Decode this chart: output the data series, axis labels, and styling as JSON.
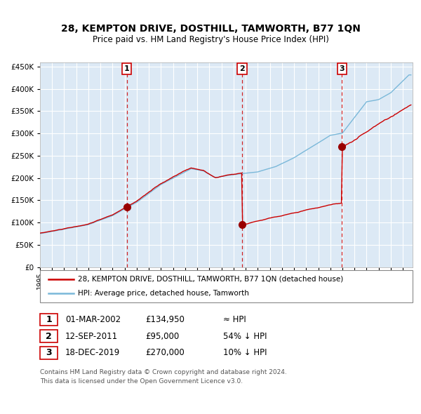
{
  "title": "28, KEMPTON DRIVE, DOSTHILL, TAMWORTH, B77 1QN",
  "subtitle": "Price paid vs. HM Land Registry's House Price Index (HPI)",
  "bg_color": "#dce9f5",
  "plot_bg_color": "#dce9f5",
  "hpi_color": "#7ab8d9",
  "price_color": "#cc0000",
  "marker_color": "#990000",
  "dashed_line_color": "#cc0000",
  "ylim": [
    0,
    460000
  ],
  "yticks": [
    0,
    50000,
    100000,
    150000,
    200000,
    250000,
    300000,
    350000,
    400000,
    450000
  ],
  "xlim_start": 1995.0,
  "xlim_end": 2025.8,
  "transaction_dates": [
    2002.17,
    2011.71,
    2019.96
  ],
  "transaction_prices": [
    134950,
    95000,
    270000
  ],
  "transaction_labels": [
    "1",
    "2",
    "3"
  ],
  "legend_label_red": "28, KEMPTON DRIVE, DOSTHILL, TAMWORTH, B77 1QN (detached house)",
  "legend_label_blue": "HPI: Average price, detached house, Tamworth",
  "table_rows": [
    [
      "1",
      "01-MAR-2002",
      "£134,950",
      "≈ HPI"
    ],
    [
      "2",
      "12-SEP-2011",
      "£95,000",
      "54% ↓ HPI"
    ],
    [
      "3",
      "18-DEC-2019",
      "£270,000",
      "10% ↓ HPI"
    ]
  ],
  "footnote1": "Contains HM Land Registry data © Crown copyright and database right 2024.",
  "footnote2": "This data is licensed under the Open Government Licence v3.0."
}
